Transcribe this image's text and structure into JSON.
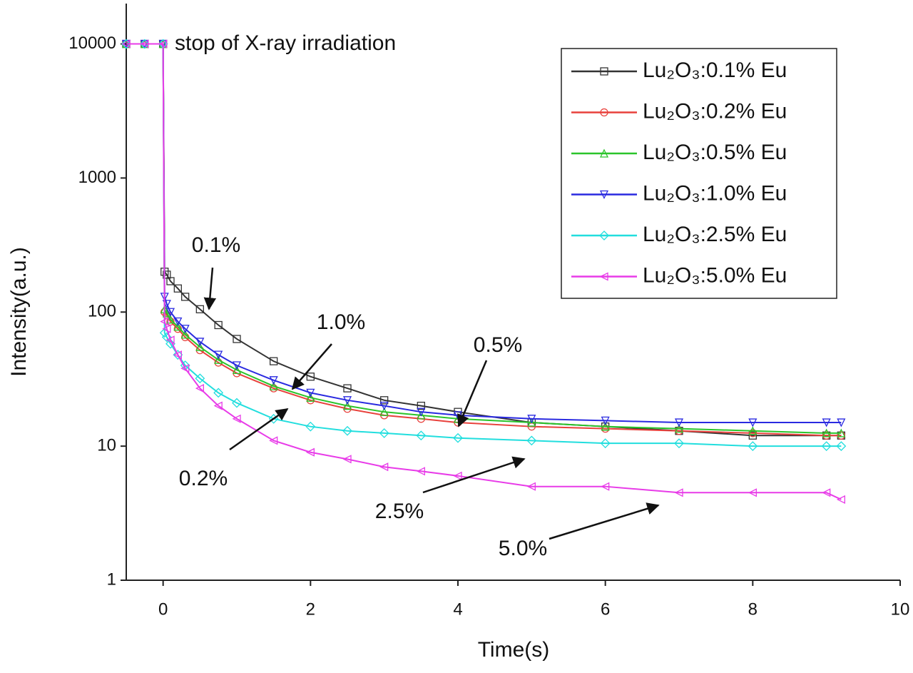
{
  "chart_data": {
    "type": "line",
    "x_label": "Time(s)",
    "y_label": "Intensity(a.u.)",
    "log_y": true,
    "xlim": [
      -0.5,
      10
    ],
    "ylim": [
      1,
      20000
    ],
    "xticks": [
      0,
      2,
      4,
      6,
      8,
      10
    ],
    "yticks": [
      1,
      10,
      100,
      1000,
      10000
    ],
    "legend": "upper right",
    "x": [
      -0.5,
      -0.25,
      0,
      0.02,
      0.05,
      0.1,
      0.2,
      0.3,
      0.5,
      0.75,
      1,
      1.5,
      2,
      2.5,
      3,
      3.5,
      4,
      5,
      6,
      7,
      8,
      9,
      9.2
    ],
    "series": [
      {
        "name": "Lu₂O₃:0.1% Eu",
        "color": "#333333",
        "marker": "square",
        "values": [
          10000,
          10000,
          10000,
          200,
          190,
          170,
          150,
          130,
          105,
          80,
          63,
          43,
          33,
          27,
          22,
          20,
          18,
          15,
          14,
          13,
          12,
          12,
          12
        ]
      },
      {
        "name": "Lu₂O₃:0.2% Eu",
        "color": "#e8413c",
        "marker": "circle",
        "values": [
          10000,
          10000,
          10000,
          100,
          95,
          85,
          75,
          65,
          52,
          42,
          35,
          27,
          22,
          19,
          17,
          16,
          15,
          14,
          13.5,
          13,
          12.5,
          12,
          12
        ]
      },
      {
        "name": "Lu₂O₃:0.5% Eu",
        "color": "#2bc42b",
        "marker": "triangle-up",
        "values": [
          10000,
          10000,
          10000,
          105,
          98,
          88,
          78,
          68,
          55,
          44,
          37,
          28,
          23,
          20,
          18,
          17,
          16,
          15,
          14,
          13.5,
          13,
          12.5,
          12.5
        ]
      },
      {
        "name": "Lu₂O₃:1.0% Eu",
        "color": "#2a2ae0",
        "marker": "triangle-down",
        "values": [
          10000,
          10000,
          10000,
          130,
          115,
          100,
          85,
          75,
          60,
          48,
          40,
          31,
          25,
          22,
          20,
          18,
          17,
          16,
          15.5,
          15,
          15,
          15,
          15
        ]
      },
      {
        "name": "Lu₂O₃:2.5% Eu",
        "color": "#22dede",
        "marker": "diamond",
        "values": [
          10000,
          10000,
          10000,
          70,
          65,
          58,
          48,
          40,
          32,
          25,
          21,
          16,
          14,
          13,
          12.5,
          12,
          11.5,
          11,
          10.5,
          10.5,
          10,
          10,
          10
        ]
      },
      {
        "name": "Lu₂O₃:5.0% Eu",
        "color": "#e83be8",
        "marker": "triangle-left",
        "values": [
          10000,
          10000,
          10000,
          85,
          75,
          62,
          48,
          38,
          27,
          20,
          16,
          11,
          9,
          8,
          7,
          6.5,
          6,
          5,
          5,
          4.5,
          4.5,
          4.5,
          4
        ]
      }
    ],
    "annotations": [
      "stop of X-ray irradiation",
      "0.1%",
      "1.0%",
      "0.5%",
      "0.2%",
      "2.5%",
      "5.0%"
    ]
  }
}
